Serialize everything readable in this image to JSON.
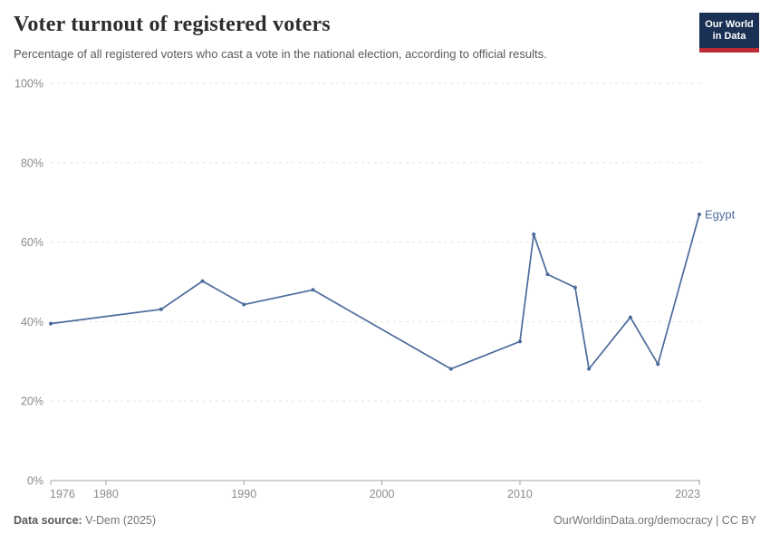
{
  "header": {
    "title": "Voter turnout of registered voters",
    "subtitle": "Percentage of all registered voters who cast a vote in the national election, according to official results.",
    "logo": {
      "line1": "Our World",
      "line2": "in Data",
      "bg_color": "#1a3054",
      "bar_color": "#bc2b33"
    }
  },
  "chart_data": {
    "type": "line",
    "title": "Voter turnout of registered voters",
    "xlabel": "",
    "ylabel": "",
    "xlim": [
      1976,
      2023
    ],
    "ylim": [
      0,
      100
    ],
    "x_ticks": [
      1976,
      1980,
      1990,
      2000,
      2010,
      2023
    ],
    "y_ticks": [
      0,
      20,
      40,
      60,
      80,
      100
    ],
    "y_tick_suffix": "%",
    "grid": "horizontal-dashed",
    "legend_position": "end-of-line-label",
    "series": [
      {
        "name": "Egypt",
        "color": "#4c6a9c",
        "x": [
          1976,
          1984,
          1987,
          1990,
          1995,
          2005,
          2010,
          2011,
          2012,
          2014,
          2015,
          2018,
          2020,
          2023
        ],
        "values": [
          39.5,
          43.1,
          50.2,
          44.3,
          48.0,
          28.1,
          35.0,
          62.0,
          51.9,
          48.6,
          28.1,
          41.1,
          29.3,
          67.0
        ]
      }
    ]
  },
  "footer": {
    "source_label": "Data source:",
    "source_value": " V-Dem (2025)",
    "right_text": "OurWorldinData.org/democracy | CC BY"
  }
}
